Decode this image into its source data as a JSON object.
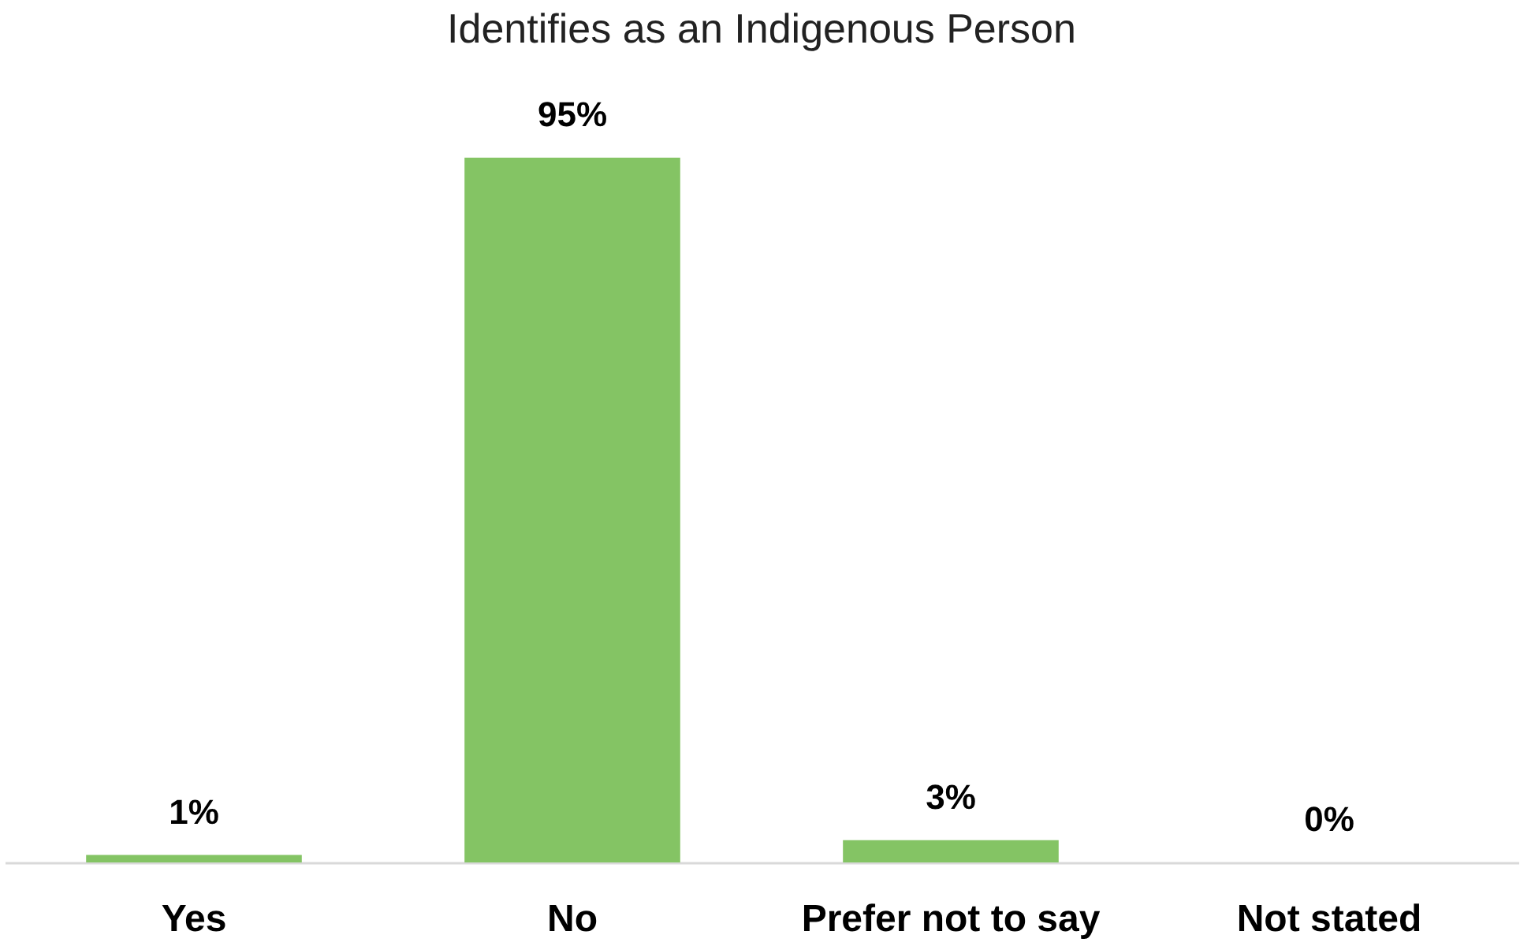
{
  "chart_data": {
    "type": "bar",
    "title": "Identifies as an Indigenous Person",
    "categories": [
      "Yes",
      "No",
      "Prefer not to say",
      "Not stated"
    ],
    "values": [
      1,
      95,
      3,
      0
    ],
    "color": "#84c464",
    "value_labels": [
      "1%",
      "95%",
      "3%",
      "0%"
    ]
  }
}
